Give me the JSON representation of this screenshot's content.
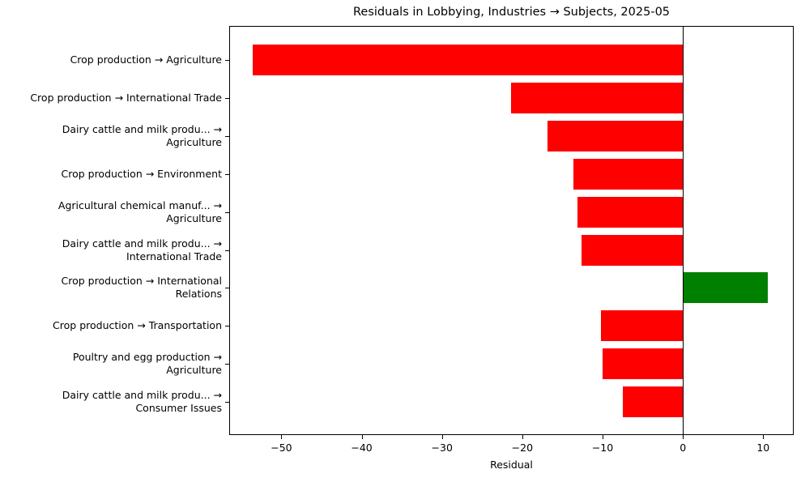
{
  "chart_data": {
    "type": "bar",
    "orientation": "horizontal",
    "title": "Residuals in Lobbying, Industries → Subjects, 2025-05",
    "xlabel": "Residual",
    "ylabel": "",
    "xlim": [
      -56.5,
      13.8
    ],
    "xticks": [
      -50,
      -40,
      -30,
      -20,
      -10,
      0,
      10
    ],
    "xtick_labels": [
      "−50",
      "−40",
      "−30",
      "−20",
      "−10",
      "0",
      "10"
    ],
    "grid": false,
    "legend": null,
    "zero_line": true,
    "colors": {
      "negative": "#ff0000",
      "positive": "#008000"
    },
    "categories": [
      "Crop production → Agriculture",
      "Crop production → International Trade",
      "Dairy cattle and milk produ... →\nAgriculture",
      "Crop production → Environment",
      "Agricultural chemical manuf... →\nAgriculture",
      "Dairy cattle and milk produ... →\nInternational Trade",
      "Crop production → International\nRelations",
      "Crop production → Transportation",
      "Poultry and egg production →\nAgriculture",
      "Dairy cattle and milk produ... →\nConsumer Issues"
    ],
    "values": [
      -53.6,
      -21.4,
      -16.9,
      -13.6,
      -13.1,
      -12.6,
      10.6,
      -10.2,
      -10.0,
      -7.5
    ]
  }
}
